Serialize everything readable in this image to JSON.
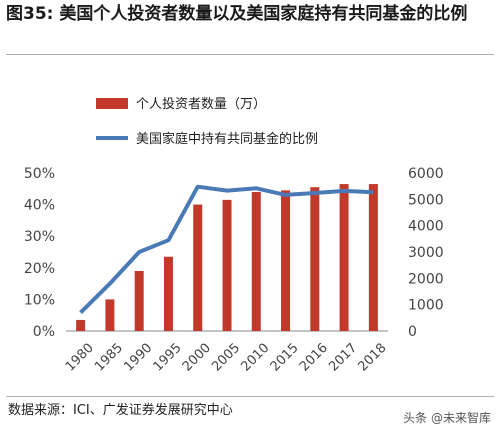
{
  "figure": {
    "title": "图35: 美国个人投资者数量以及美国家庭持有共同基金的比例",
    "source": "数据来源：ICI、广发证券发展研究中心",
    "watermark": "头条 @未来智库"
  },
  "chart_data": {
    "type": "bar+line",
    "categories": [
      "1980",
      "1985",
      "1990",
      "1995",
      "2000",
      "2005",
      "2010",
      "2015",
      "2016",
      "2017",
      "2018"
    ],
    "series": [
      {
        "name": "个人投资者数量（万）",
        "type": "bar",
        "axis": "left",
        "color": "#c0392b",
        "values": [
          0.035,
          0.1,
          0.19,
          0.235,
          0.4,
          0.415,
          0.44,
          0.445,
          0.455,
          0.465,
          0.465
        ]
      },
      {
        "name": "美国家庭中持有共同基金的比例",
        "type": "line",
        "axis": "right",
        "color": "#4a7ab5",
        "values": [
          700,
          1800,
          3000,
          3450,
          5480,
          5330,
          5420,
          5170,
          5240,
          5320,
          5270
        ]
      }
    ],
    "left_axis": {
      "ylim": [
        0,
        0.5
      ],
      "ticks": [
        "0%",
        "10%",
        "20%",
        "30%",
        "40%",
        "50%"
      ],
      "tick_values": [
        0,
        0.1,
        0.2,
        0.3,
        0.4,
        0.5
      ]
    },
    "right_axis": {
      "ylim": [
        0,
        6000
      ],
      "ticks": [
        "0",
        "1000",
        "2000",
        "3000",
        "4000",
        "5000",
        "6000"
      ],
      "tick_values": [
        0,
        1000,
        2000,
        3000,
        4000,
        5000,
        6000
      ]
    },
    "legend_position": "top-left",
    "grid": false
  }
}
